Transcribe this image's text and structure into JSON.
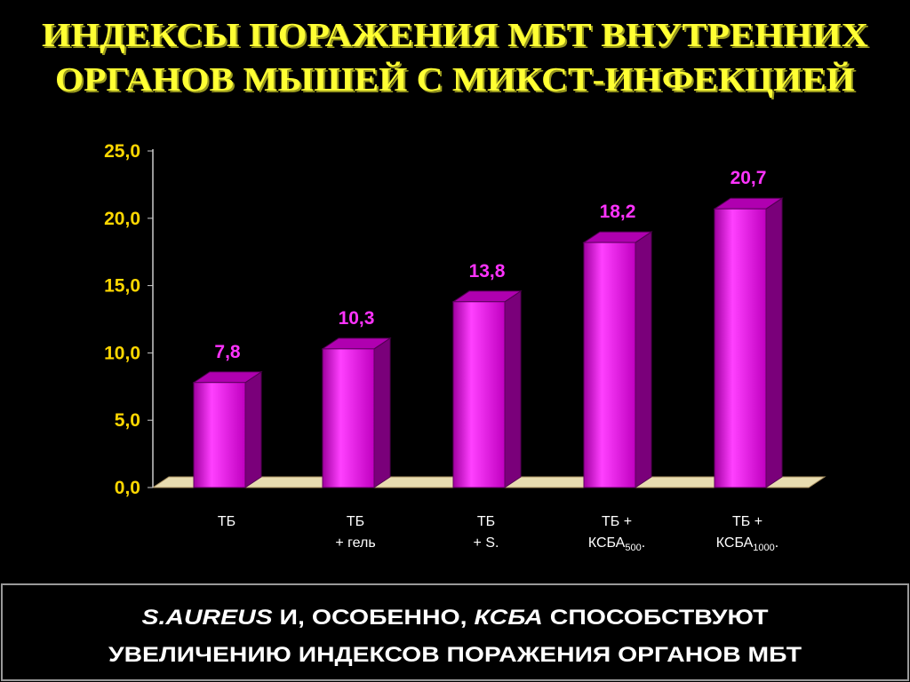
{
  "chart_data": {
    "type": "bar3d",
    "title": [
      "ИНДЕКСЫ ПОРАЖЕНИЯ МБТ ВНУТРЕННИХ",
      "ОРГАНОВ МЫШЕЙ С МИКСТ-ИНФЕКЦИЕЙ"
    ],
    "categories": [
      [
        [
          "ТБ"
        ]
      ],
      [
        [
          "ТБ"
        ],
        [
          "+ гель"
        ]
      ],
      [
        [
          "ТБ"
        ],
        [
          "+ S."
        ]
      ],
      [
        [
          "ТБ +"
        ],
        [
          "КСБА",
          "500",
          "."
        ]
      ],
      [
        [
          "ТБ +"
        ],
        [
          "КСБА",
          "1000",
          "."
        ]
      ]
    ],
    "values": [
      7.8,
      10.3,
      13.8,
      18.2,
      20.7
    ],
    "value_labels": [
      "7,8",
      "10,3",
      "13,8",
      "18,2",
      "20,7"
    ],
    "color": "#ff00ff",
    "ylim": [
      0,
      25
    ],
    "yticks": [
      {
        "value": 0,
        "label": "0,0"
      },
      {
        "value": 5,
        "label": "5,0"
      },
      {
        "value": 10,
        "label": "10,0"
      },
      {
        "value": 15,
        "label": "15,0"
      },
      {
        "value": 20,
        "label": "20,0"
      },
      {
        "value": 25,
        "label": "25,0"
      }
    ]
  },
  "footer": [
    [
      {
        "text": "S.AUREUS",
        "italic": true
      },
      {
        "text": " И, ОСОБЕННО,  "
      },
      {
        "text": "КСБА",
        "italic": true
      },
      {
        "text": " СПОСОБСТВУЮТ"
      }
    ],
    [
      {
        "text": "УВЕЛИЧЕНИЮ ИНДЕКСОВ ПОРАЖЕНИЯ ОРГАНОВ МБТ"
      }
    ]
  ]
}
